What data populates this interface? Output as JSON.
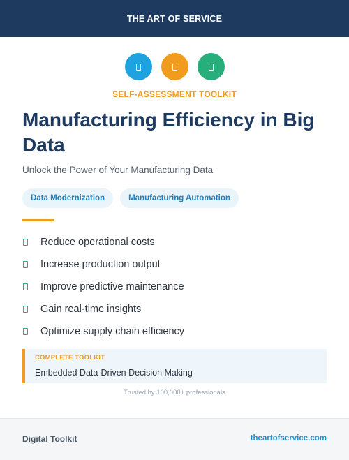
{
  "header": {
    "brand": "THE ART OF SERVICE"
  },
  "badges": [
    {
      "icon": "document-icon",
      "color": "#1fa3e0"
    },
    {
      "icon": "document-icon",
      "color": "#f29c1f"
    },
    {
      "icon": "document-icon",
      "color": "#27ae7a"
    }
  ],
  "kicker": "SELF-ASSESSMENT TOOLKIT",
  "title": "Manufacturing Efficiency in Big Data",
  "subtitle": "Unlock the Power of Your Manufacturing Data",
  "tags": [
    "Data Modernization",
    "Manufacturing Automation"
  ],
  "benefits": [
    "Reduce operational costs",
    "Increase production output",
    "Improve predictive maintenance",
    "Gain real-time insights",
    "Optimize supply chain efficiency"
  ],
  "toolkit": {
    "label": "COMPLETE TOOLKIT",
    "name": "Embedded Data-Driven Decision Making"
  },
  "trusted": "Trusted by 100,000+ professionals",
  "footer": {
    "left": "Digital Toolkit",
    "right": "theartofservice.com"
  },
  "colors": {
    "navy": "#1e3a5f",
    "orange": "#f29c1f",
    "blue": "#1fa3e0",
    "green": "#27ae7a"
  }
}
